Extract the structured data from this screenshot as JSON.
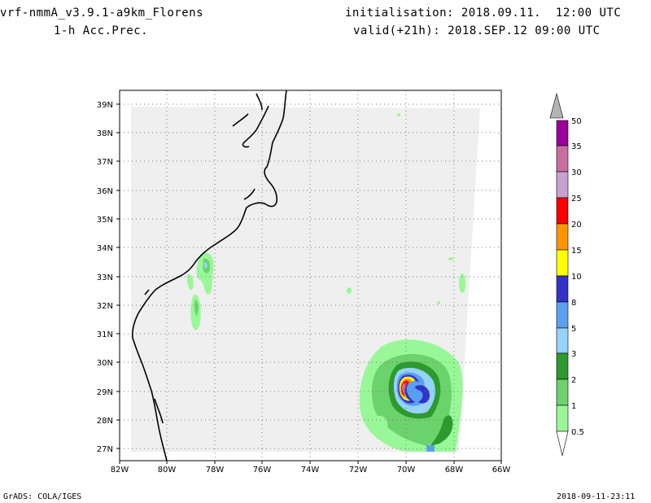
{
  "header": {
    "model": "vrf-nmmA_v3.9.1-a9km_Florens",
    "field": "1-h Acc.Prec.",
    "initialisation": "initialisation: 2018.09.11.  12:00 UTC",
    "valid": "valid(+21h): 2018.SEP.12 09:00 UTC"
  },
  "footer": {
    "left": "GrADS: COLA/IGES",
    "right": "2018-09-11-23:11"
  },
  "map": {
    "lon_range": [
      -82,
      -66
    ],
    "lat_range": [
      26.6,
      39.3
    ],
    "lon_ticks": [
      "82W",
      "80W",
      "78W",
      "76W",
      "74W",
      "72W",
      "70W",
      "68W",
      "66W"
    ],
    "lat_ticks": [
      "39N",
      "38N",
      "37N",
      "36N",
      "35N",
      "34N",
      "33N",
      "32N",
      "31N",
      "30N",
      "29N",
      "28N",
      "27N"
    ]
  },
  "colorbar": {
    "labels": [
      "0.5",
      "1",
      "2",
      "3",
      "5",
      "8",
      "10",
      "15",
      "20",
      "25",
      "30",
      "35",
      "50"
    ],
    "colors": [
      "#98f898",
      "#6cd26c",
      "#2c9a2c",
      "#96d2fa",
      "#5aa0f0",
      "#3232c8",
      "#ffff00",
      "#ff9600",
      "#ff0000",
      "#c8a0d2",
      "#c86ea0",
      "#9b009b",
      "#b4b4b4"
    ]
  }
}
